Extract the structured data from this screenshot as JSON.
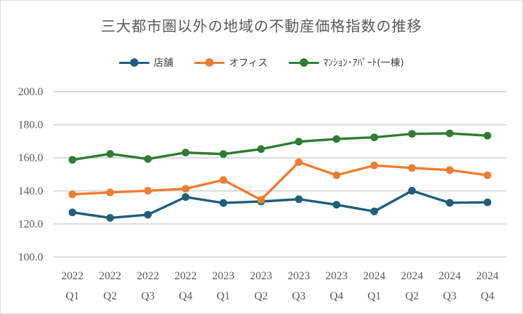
{
  "chart_data": {
    "type": "line",
    "title": "三大都市圏以外の地域の不動産価格指数の推移",
    "xlabel": "",
    "ylabel": "",
    "ylim": [
      100,
      200
    ],
    "yticks": [
      "100.0",
      "120.0",
      "140.0",
      "160.0",
      "180.0",
      "200.0"
    ],
    "grid": true,
    "legend_position": "top",
    "categories": [
      {
        "year": "2022",
        "quarter": "Q1"
      },
      {
        "year": "2022",
        "quarter": "Q2"
      },
      {
        "year": "2022",
        "quarter": "Q3"
      },
      {
        "year": "2022",
        "quarter": "Q4"
      },
      {
        "year": "2023",
        "quarter": "Q1"
      },
      {
        "year": "2023",
        "quarter": "Q2"
      },
      {
        "year": "2023",
        "quarter": "Q3"
      },
      {
        "year": "2023",
        "quarter": "Q4"
      },
      {
        "year": "2024",
        "quarter": "Q1"
      },
      {
        "year": "2024",
        "quarter": "Q2"
      },
      {
        "year": "2024",
        "quarter": "Q3"
      },
      {
        "year": "2024",
        "quarter": "Q4"
      }
    ],
    "series": [
      {
        "name": "店舗",
        "color": "#1f5f7a",
        "values": [
          127.0,
          123.7,
          125.6,
          136.3,
          132.7,
          133.6,
          135.0,
          131.6,
          127.6,
          140.1,
          132.8,
          133.1
        ]
      },
      {
        "name": "オフィス",
        "color": "#ed7d31",
        "values": [
          137.9,
          139.1,
          140.1,
          141.3,
          146.6,
          134.6,
          157.4,
          149.5,
          155.4,
          153.9,
          152.6,
          149.5
        ]
      },
      {
        "name": "ﾏﾝｼｮﾝ･ｱﾊﾟｰﾄ(一棟)",
        "color": "#2e7d32",
        "values": [
          158.8,
          162.4,
          159.3,
          163.2,
          162.3,
          165.3,
          169.8,
          171.4,
          172.4,
          174.5,
          174.8,
          173.4
        ]
      }
    ]
  }
}
